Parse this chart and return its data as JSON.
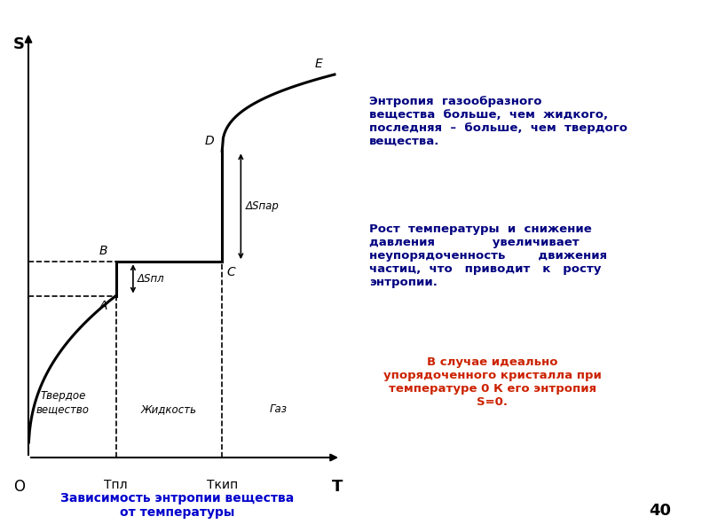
{
  "fig_width": 8.0,
  "fig_height": 6.0,
  "dpi": 100,
  "background_color": "#ffffff",
  "title_text": "Зависимость энтропии вещества\nот температуры",
  "title_color": "#0000cc",
  "title_fontsize": 10,
  "page_number": "40",
  "right_text_1": "Энтропия  газообразного\nвещества  больше,  чем  жидкого,\nпоследняя  –  больше,  чем  твердого\nвещества.",
  "right_text_2": "Рост  температуры  и  снижение\nдавления              увеличивает\nнеупорядоченность        движения\nчастиц,  что   приводит   к   росту\nэнтропии.",
  "right_text_3": "В случае идеально\nупорядоченного кристалла при\nтемпературе 0 К его энтропия\nS=0.",
  "right_text_color_1": "#000080",
  "right_text_color_2": "#000080",
  "right_text_color_3": "#cc2200",
  "axis_label_S": "S",
  "axis_label_T": "T",
  "origin_label": "O",
  "label_Tpl": "Тпл",
  "label_Tkip": "Ткип",
  "label_A": "A",
  "label_B": "B",
  "label_C": "C",
  "label_D": "D",
  "label_E": "E",
  "label_delta_S_pl": "ΔSпл",
  "label_delta_S_par": "ΔSпар",
  "label_solid": "Твердое\nвещество",
  "label_liquid": "Жидкость",
  "label_gas": "Газ",
  "T_pl": 0.28,
  "T_kip": 0.62,
  "S_A": 0.38,
  "S_B": 0.46,
  "S_C": 0.46,
  "S_D": 0.72,
  "curve_color": "#000000",
  "dashed_color": "#000000",
  "arrow_color": "#000000",
  "phase_label_color": "#000000",
  "axis_color": "#000000"
}
